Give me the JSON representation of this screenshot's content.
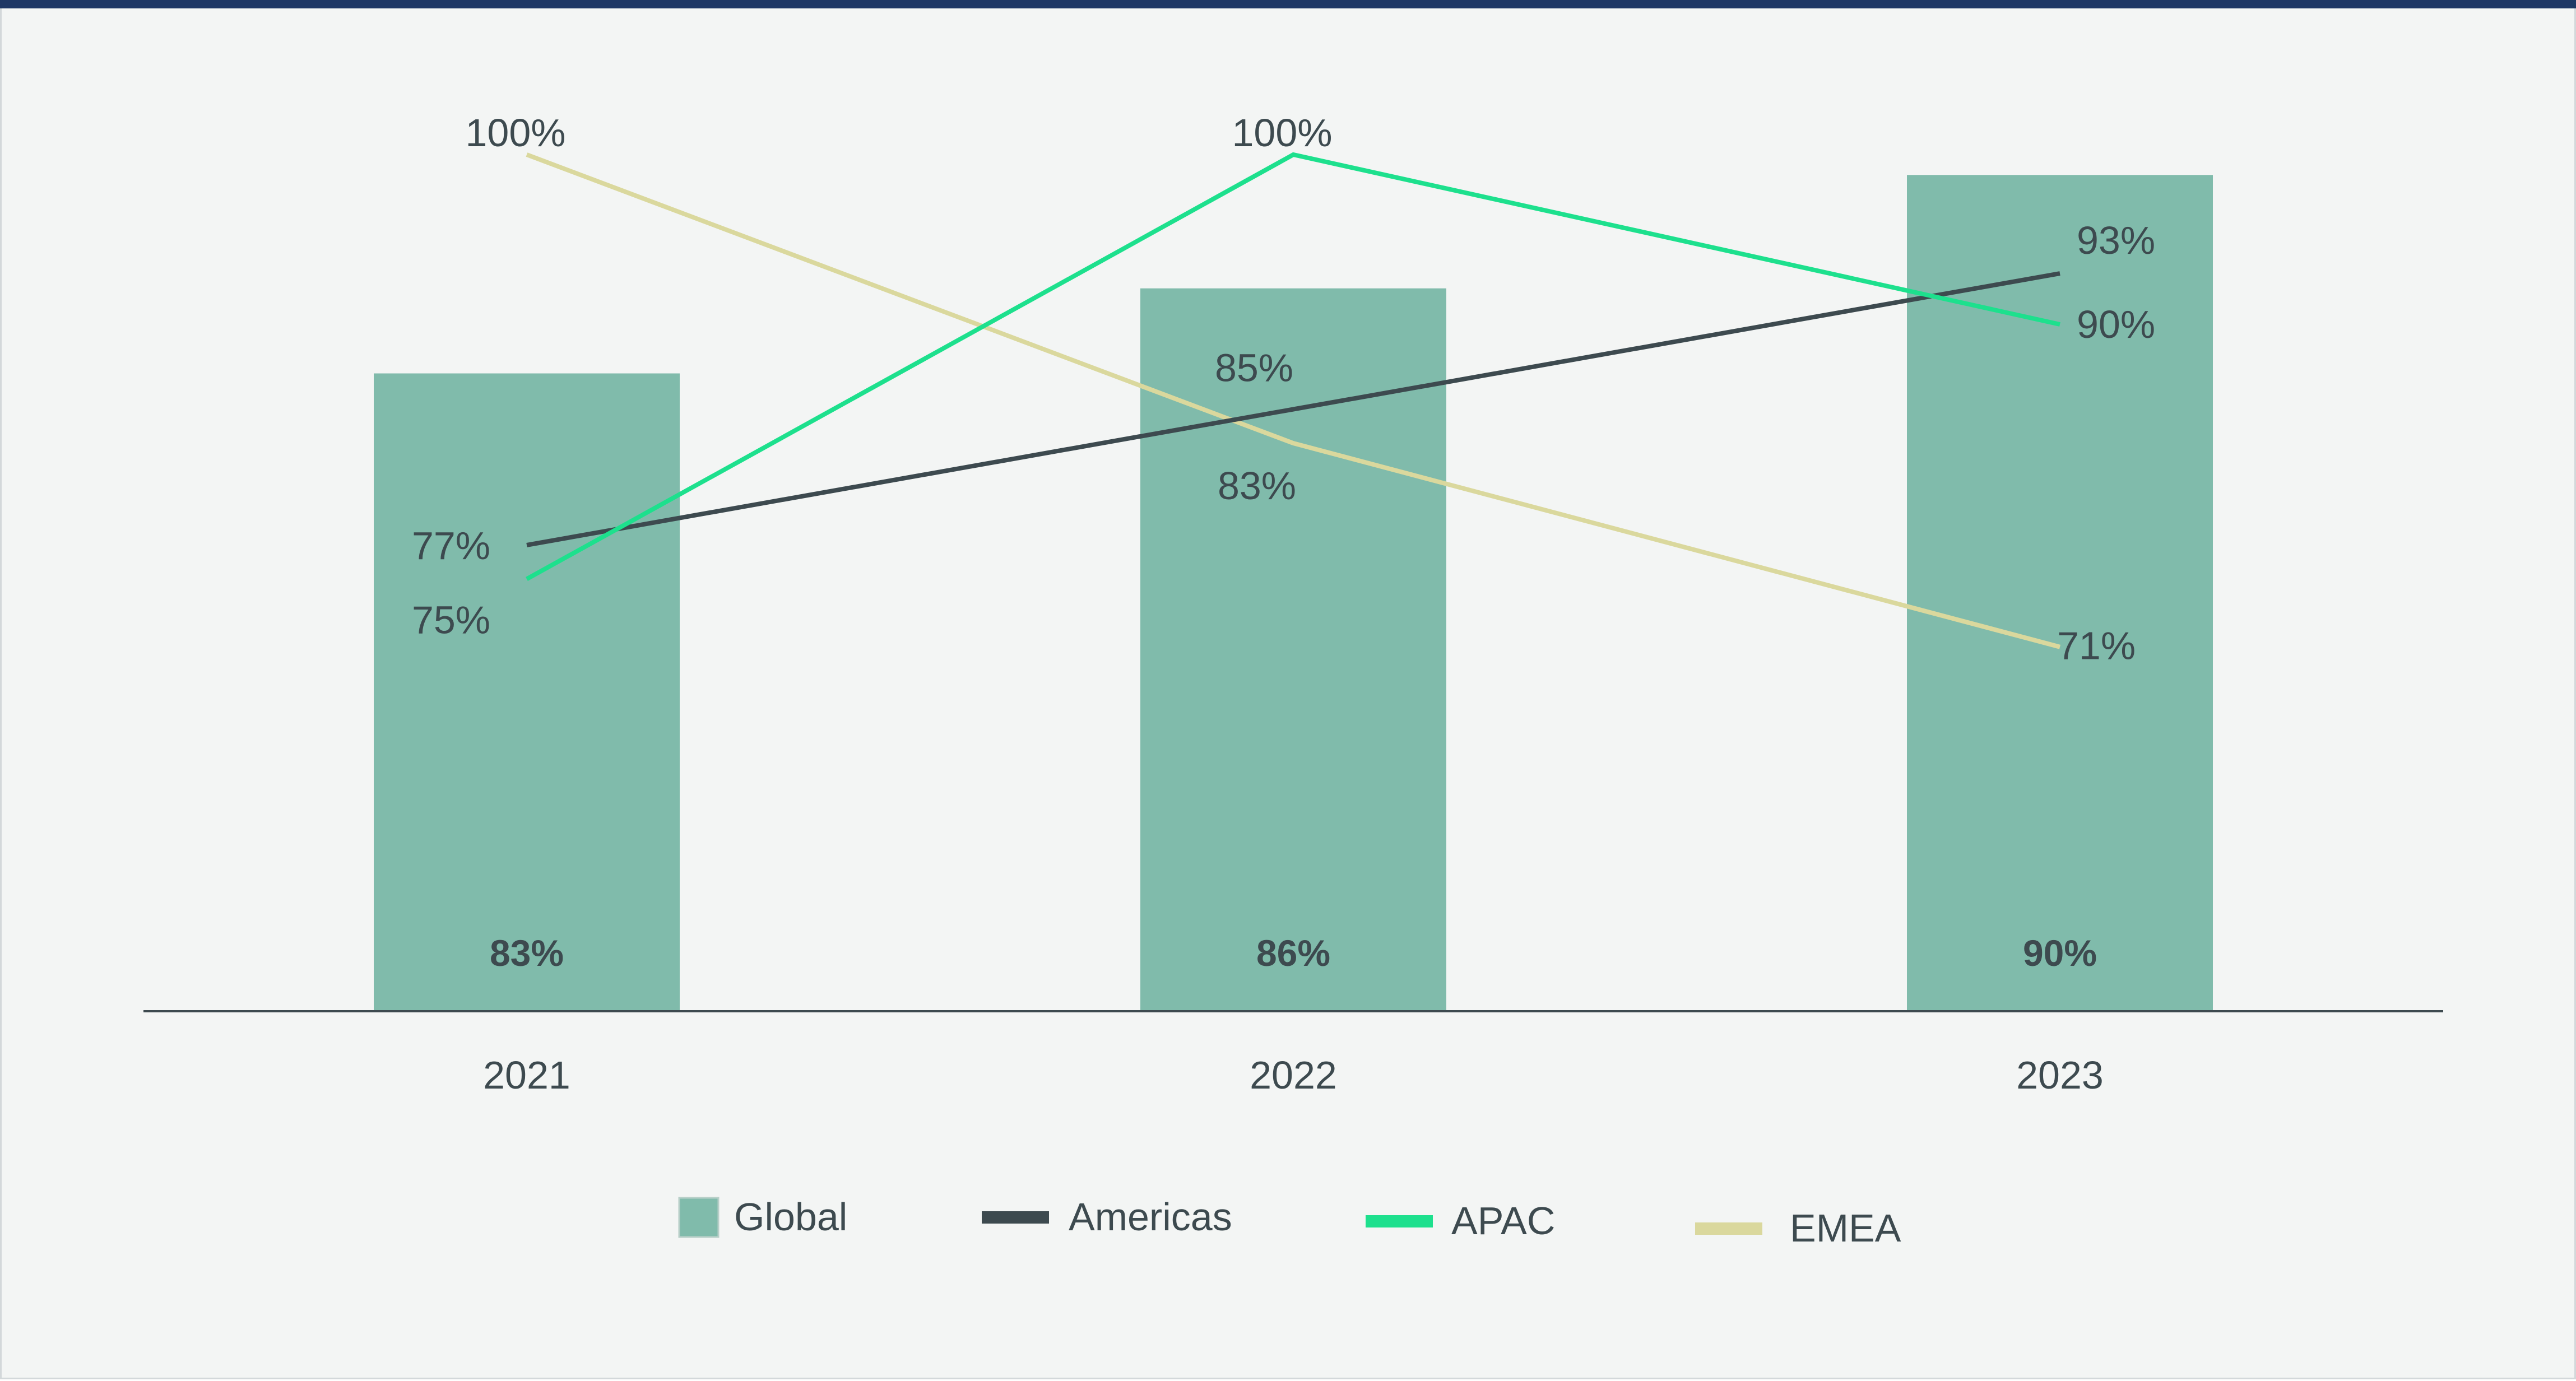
{
  "chart_data": {
    "type": "bar",
    "title": "",
    "xlabel": "",
    "ylabel": "",
    "categories": [
      "2021",
      "2022",
      "2023"
    ],
    "ylim": [
      0,
      1
    ],
    "series": [
      {
        "name": "Global",
        "kind": "bar",
        "color": "#80bbab",
        "values": [
          0.83,
          0.86,
          0.9
        ],
        "labels": [
          "83%",
          "86%",
          "90%"
        ]
      },
      {
        "name": "Americas",
        "kind": "line",
        "color": "#3d4a4f",
        "values": [
          0.77,
          0.85,
          0.93
        ],
        "labels": [
          "77%",
          "85%",
          "93%"
        ]
      },
      {
        "name": "APAC",
        "kind": "line",
        "color": "#1de08d",
        "values": [
          0.75,
          1.0,
          0.9
        ],
        "labels": [
          "75%",
          "100%",
          "90%"
        ]
      },
      {
        "name": "EMEA",
        "kind": "line",
        "color": "#dad89d",
        "values": [
          1.0,
          0.83,
          0.71
        ],
        "labels": [
          "100%",
          "83%",
          "71%"
        ]
      }
    ],
    "legend": "bottom-center",
    "grid": false
  }
}
